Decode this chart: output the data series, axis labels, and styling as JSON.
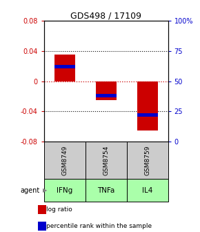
{
  "title": "GDS498 / 17109",
  "samples": [
    "GSM8749",
    "GSM8754",
    "GSM8759"
  ],
  "agents": [
    "IFNg",
    "TNFa",
    "IL4"
  ],
  "log_ratios": [
    0.035,
    -0.025,
    -0.065
  ],
  "percentile_ranks": [
    0.62,
    0.38,
    0.22
  ],
  "ylim_left": [
    -0.08,
    0.08
  ],
  "ylim_right": [
    0.0,
    1.0
  ],
  "yticks_left": [
    -0.08,
    -0.04,
    0.0,
    0.04,
    0.08
  ],
  "yticks_right": [
    0.0,
    0.25,
    0.5,
    0.75,
    1.0
  ],
  "ytick_labels_right": [
    "0",
    "25",
    "50",
    "75",
    "100%"
  ],
  "bar_color_red": "#cc0000",
  "bar_color_blue": "#0000cc",
  "zero_line_color": "#cc0000",
  "sample_box_color": "#cccccc",
  "agent_box_color": "#aaffaa",
  "legend_red_label": "log ratio",
  "legend_blue_label": "percentile rank within the sample",
  "agent_label": "agent"
}
